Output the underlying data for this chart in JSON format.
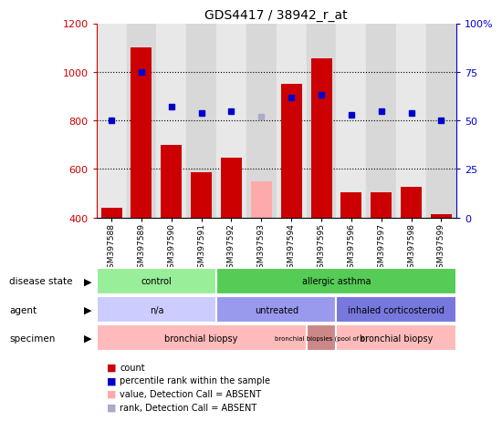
{
  "title": "GDS4417 / 38942_r_at",
  "samples": [
    "GSM397588",
    "GSM397589",
    "GSM397590",
    "GSM397591",
    "GSM397592",
    "GSM397593",
    "GSM397594",
    "GSM397595",
    "GSM397596",
    "GSM397597",
    "GSM397598",
    "GSM397599"
  ],
  "counts": [
    440,
    1100,
    700,
    585,
    648,
    550,
    950,
    1055,
    505,
    505,
    525,
    415
  ],
  "count_absent": [
    false,
    false,
    false,
    false,
    false,
    true,
    false,
    false,
    false,
    false,
    false,
    false
  ],
  "percentile_ranks": [
    50,
    75,
    57,
    54,
    55,
    52,
    62,
    63,
    53,
    55,
    54,
    50
  ],
  "rank_absent": [
    false,
    false,
    false,
    false,
    false,
    true,
    false,
    false,
    false,
    false,
    false,
    false
  ],
  "ylim_left": [
    400,
    1200
  ],
  "ylim_right": [
    0,
    100
  ],
  "yticks_left": [
    400,
    600,
    800,
    1000,
    1200
  ],
  "yticks_right": [
    0,
    25,
    50,
    75,
    100
  ],
  "bar_color_normal": "#cc0000",
  "bar_color_absent": "#ffaaaa",
  "dot_color_normal": "#0000cc",
  "dot_color_absent": "#aaaacc",
  "col_bg_even": "#e8e8e8",
  "col_bg_odd": "#d8d8d8",
  "disease_state_row": {
    "label": "disease state",
    "groups": [
      {
        "text": "control",
        "span": [
          0,
          4
        ],
        "color": "#99ee99"
      },
      {
        "text": "allergic asthma",
        "span": [
          4,
          12
        ],
        "color": "#55cc55"
      }
    ]
  },
  "agent_row": {
    "label": "agent",
    "groups": [
      {
        "text": "n/a",
        "span": [
          0,
          4
        ],
        "color": "#ccccff"
      },
      {
        "text": "untreated",
        "span": [
          4,
          8
        ],
        "color": "#9999ee"
      },
      {
        "text": "inhaled corticosteroid",
        "span": [
          8,
          12
        ],
        "color": "#7777dd"
      }
    ]
  },
  "specimen_row": {
    "label": "specimen",
    "groups": [
      {
        "text": "bronchial biopsy",
        "span": [
          0,
          7
        ],
        "color": "#ffbbbb"
      },
      {
        "text": "bronchial biopsies (pool of 6)",
        "span": [
          7,
          8
        ],
        "color": "#cc8888"
      },
      {
        "text": "bronchial biopsy",
        "span": [
          8,
          12
        ],
        "color": "#ffbbbb"
      }
    ]
  },
  "legend_items": [
    {
      "label": "count",
      "color": "#cc0000"
    },
    {
      "label": "percentile rank within the sample",
      "color": "#0000cc"
    },
    {
      "label": "value, Detection Call = ABSENT",
      "color": "#ffaaaa"
    },
    {
      "label": "rank, Detection Call = ABSENT",
      "color": "#aaaacc"
    }
  ]
}
